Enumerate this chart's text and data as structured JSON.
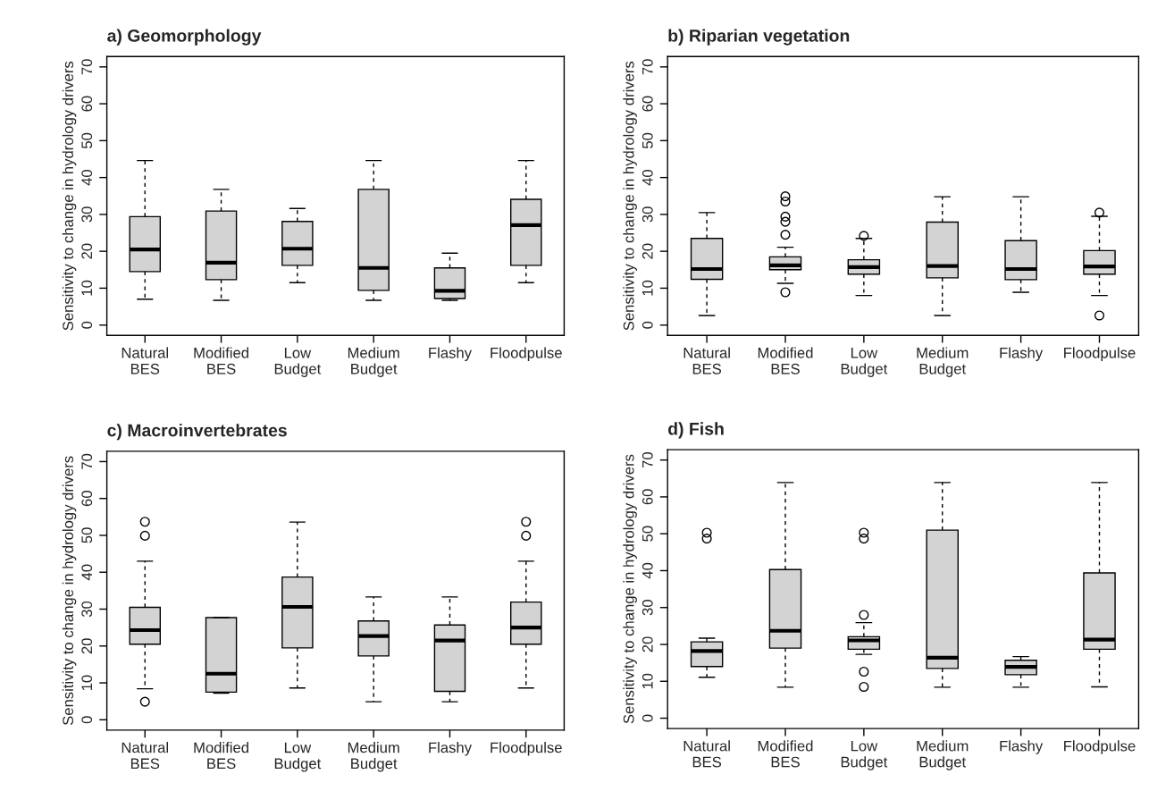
{
  "chart_data": [
    {
      "type": "box",
      "title": "a) Geomorphology",
      "ylabel": "Sensitivity to change in hydrology drivers",
      "categories": [
        "Natural BES",
        "Modified BES",
        "Low Budget",
        "Medium Budget",
        "Flashy",
        "Floodpulse"
      ],
      "ylim": [
        -2.8,
        72.8
      ],
      "yticks": [
        0,
        10,
        20,
        30,
        40,
        50,
        60,
        70
      ],
      "series": [
        {
          "color": "#d3d3d3",
          "boxes": [
            {
              "low": 7.0,
              "q1": 14.5,
              "median": 20.5,
              "q3": 29.4,
              "high": 44.6
            },
            {
              "low": 6.7,
              "q1": 12.3,
              "median": 16.9,
              "q3": 30.9,
              "high": 36.8
            },
            {
              "low": 11.5,
              "q1": 16.2,
              "median": 20.7,
              "q3": 28.1,
              "high": 31.6
            },
            {
              "low": 6.7,
              "q1": 9.4,
              "median": 15.5,
              "q3": 36.8,
              "high": 44.6
            },
            {
              "low": 6.7,
              "q1": 7.2,
              "median": 9.3,
              "q3": 15.5,
              "high": 19.5
            },
            {
              "low": 11.5,
              "q1": 16.2,
              "median": 27.1,
              "q3": 34.1,
              "high": 44.6
            }
          ]
        }
      ]
    },
    {
      "type": "box",
      "title": "b) Riparian vegetation",
      "ylabel": "Sensitivity to change in hydrology drivers",
      "categories": [
        "Natural BES",
        "Modified BES",
        "Low Budget",
        "Medium Budget",
        "Flashy",
        "Floodpulse"
      ],
      "ylim": [
        -2.8,
        72.8
      ],
      "yticks": [
        0,
        10,
        20,
        30,
        40,
        50,
        60,
        70
      ],
      "series": [
        {
          "color": "#d3d3d3",
          "boxes": [
            {
              "low": 2.6,
              "q1": 12.4,
              "median": 15.2,
              "q3": 23.5,
              "high": 30.5
            },
            {
              "low": 11.3,
              "q1": 15.0,
              "median": 16.2,
              "q3": 18.5,
              "high": 21.1,
              "outliers": [
                34.9,
                33.5,
                29.4,
                28.0,
                24.5,
                8.9
              ]
            },
            {
              "low": 8.0,
              "q1": 13.8,
              "median": 15.7,
              "q3": 17.7,
              "high": 23.5,
              "outliers": [
                24.2
              ]
            },
            {
              "low": 2.6,
              "q1": 12.8,
              "median": 16.0,
              "q3": 27.9,
              "high": 34.8
            },
            {
              "low": 8.9,
              "q1": 12.3,
              "median": 15.2,
              "q3": 22.9,
              "high": 34.8
            },
            {
              "low": 8.0,
              "q1": 13.8,
              "median": 15.9,
              "q3": 20.2,
              "high": 29.5,
              "outliers": [
                30.5,
                2.6
              ]
            }
          ]
        }
      ]
    },
    {
      "type": "box",
      "title": "c) Macroinvertebrates",
      "ylabel": "Sensitivity to change in hydrology drivers",
      "categories": [
        "Natural BES",
        "Modified BES",
        "Low Budget",
        "Medium Budget",
        "Flashy",
        "Floodpulse"
      ],
      "ylim": [
        -2.8,
        72.8
      ],
      "yticks": [
        0,
        10,
        20,
        30,
        40,
        50,
        60,
        70
      ],
      "series": [
        {
          "color": "#d3d3d3",
          "boxes": [
            {
              "low": 8.4,
              "q1": 20.5,
              "median": 24.3,
              "q3": 30.5,
              "high": 43.0,
              "outliers": [
                53.7,
                49.9,
                4.9
              ]
            },
            {
              "low": 7.2,
              "q1": 7.5,
              "median": 12.5,
              "q3": 27.7,
              "high": 27.7
            },
            {
              "low": 8.6,
              "q1": 19.5,
              "median": 30.6,
              "q3": 38.7,
              "high": 53.6
            },
            {
              "low": 4.9,
              "q1": 17.3,
              "median": 22.7,
              "q3": 26.8,
              "high": 33.3
            },
            {
              "low": 4.9,
              "q1": 7.7,
              "median": 21.5,
              "q3": 25.7,
              "high": 33.3
            },
            {
              "low": 8.6,
              "q1": 20.5,
              "median": 25.0,
              "q3": 31.9,
              "high": 43.0,
              "outliers": [
                53.7,
                49.9
              ]
            }
          ]
        }
      ]
    },
    {
      "type": "box",
      "title": "d) Fish",
      "ylabel": "Sensitivity to change in hydrology drivers",
      "categories": [
        "Natural BES",
        "Modified BES",
        "Low Budget",
        "Medium Budget",
        "Flashy",
        "Floodpulse"
      ],
      "ylim": [
        -2.8,
        72.8
      ],
      "yticks": [
        0,
        10,
        20,
        30,
        40,
        50,
        60,
        70
      ],
      "series": [
        {
          "color": "#d3d3d3",
          "boxes": [
            {
              "low": 11.1,
              "q1": 14.0,
              "median": 18.2,
              "q3": 20.7,
              "high": 21.7,
              "outliers": [
                50.3,
                48.7
              ]
            },
            {
              "low": 8.4,
              "q1": 19.0,
              "median": 23.7,
              "q3": 40.3,
              "high": 63.9
            },
            {
              "low": 17.3,
              "q1": 18.7,
              "median": 21.1,
              "q3": 22.1,
              "high": 25.9,
              "outliers": [
                50.3,
                48.7,
                28.0,
                12.6,
                8.5
              ]
            },
            {
              "low": 8.4,
              "q1": 13.5,
              "median": 16.4,
              "q3": 51.0,
              "high": 63.9
            },
            {
              "low": 8.4,
              "q1": 11.8,
              "median": 13.9,
              "q3": 15.7,
              "high": 16.7
            },
            {
              "low": 8.5,
              "q1": 18.7,
              "median": 21.3,
              "q3": 39.4,
              "high": 63.9
            }
          ]
        }
      ]
    }
  ]
}
